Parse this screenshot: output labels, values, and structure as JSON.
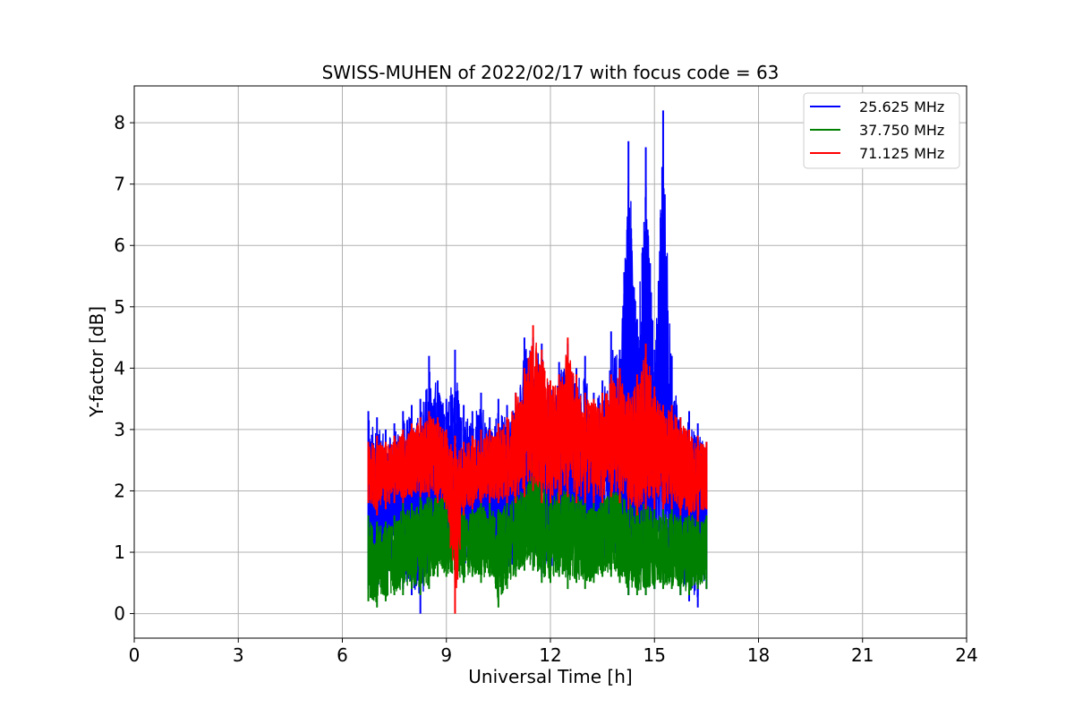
{
  "chart_data": {
    "type": "line",
    "title": "SWISS-MUHEN of 2022/02/17 with focus code = 63",
    "xlabel": "Universal Time [h]",
    "ylabel": "Y-factor [dB]",
    "xlim": [
      0,
      24
    ],
    "ylim": [
      -0.4,
      8.6
    ],
    "xticks": [
      0,
      3,
      6,
      9,
      12,
      15,
      18,
      21,
      24
    ],
    "yticks": [
      0,
      1,
      2,
      3,
      4,
      5,
      6,
      7,
      8
    ],
    "grid": true,
    "legend_position": "top-right",
    "series": [
      {
        "name": "25.625 MHz",
        "color": "#0000ff",
        "x": [
          6.75,
          7.0,
          7.25,
          7.5,
          7.75,
          8.0,
          8.25,
          8.5,
          8.75,
          9.0,
          9.25,
          9.5,
          9.75,
          10.0,
          10.25,
          10.5,
          10.75,
          11.0,
          11.25,
          11.5,
          11.75,
          12.0,
          12.25,
          12.5,
          12.75,
          13.0,
          13.25,
          13.5,
          13.75,
          14.0,
          14.25,
          14.5,
          14.75,
          15.0,
          15.25,
          15.5,
          15.75,
          16.0,
          16.25,
          16.5
        ],
        "ymin": [
          0.4,
          0.3,
          0.3,
          0.4,
          0.4,
          0.3,
          0.0,
          0.6,
          0.8,
          0.8,
          0.7,
          0.6,
          0.8,
          0.7,
          0.8,
          0.6,
          0.6,
          0.7,
          0.9,
          0.8,
          0.6,
          0.6,
          0.7,
          0.6,
          0.6,
          0.7,
          0.6,
          0.7,
          0.8,
          0.6,
          0.3,
          0.4,
          0.3,
          0.4,
          0.5,
          0.5,
          0.3,
          0.2,
          0.1,
          0.4
        ],
        "ymax": [
          3.3,
          3.2,
          3.0,
          3.1,
          3.3,
          3.4,
          3.5,
          4.2,
          3.8,
          3.5,
          4.3,
          3.4,
          3.3,
          3.6,
          3.2,
          3.5,
          3.4,
          3.6,
          4.5,
          4.5,
          4.4,
          3.8,
          4.1,
          4.4,
          4.0,
          4.2,
          3.6,
          3.8,
          4.6,
          4.3,
          7.7,
          4.8,
          7.6,
          4.3,
          8.2,
          4.2,
          3.2,
          3.3,
          3.1,
          2.8
        ]
      },
      {
        "name": "37.750 MHz",
        "color": "#008000",
        "x": [
          6.75,
          7.0,
          7.25,
          7.5,
          7.75,
          8.0,
          8.25,
          8.5,
          8.75,
          9.0,
          9.25,
          9.5,
          9.75,
          10.0,
          10.25,
          10.5,
          10.75,
          11.0,
          11.25,
          11.5,
          11.75,
          12.0,
          12.25,
          12.5,
          12.75,
          13.0,
          13.25,
          13.5,
          13.75,
          14.0,
          14.25,
          14.5,
          14.75,
          15.0,
          15.25,
          15.5,
          15.75,
          16.0,
          16.25,
          16.5
        ],
        "ymin": [
          0.2,
          0.1,
          0.2,
          0.3,
          0.3,
          0.4,
          0.3,
          0.4,
          0.6,
          0.6,
          0.5,
          0.5,
          0.6,
          0.5,
          0.6,
          0.1,
          0.4,
          0.6,
          0.7,
          0.7,
          0.5,
          0.5,
          0.6,
          0.4,
          0.5,
          0.4,
          0.5,
          0.6,
          0.6,
          0.5,
          0.3,
          0.3,
          0.3,
          0.4,
          0.4,
          0.4,
          0.3,
          0.3,
          0.4,
          0.4
        ],
        "ymax": [
          1.6,
          1.5,
          1.5,
          1.6,
          1.8,
          1.8,
          1.9,
          2.0,
          2.0,
          1.9,
          1.8,
          1.7,
          1.7,
          1.9,
          1.8,
          1.7,
          1.9,
          2.0,
          2.1,
          2.5,
          2.3,
          2.0,
          2.1,
          2.1,
          2.0,
          1.9,
          1.8,
          1.9,
          2.1,
          2.1,
          1.9,
          1.8,
          1.9,
          1.7,
          1.7,
          1.7,
          1.6,
          1.7,
          1.6,
          1.6
        ]
      },
      {
        "name": "71.125 MHz",
        "color": "#ff0000",
        "x": [
          6.75,
          7.0,
          7.25,
          7.5,
          7.75,
          8.0,
          8.25,
          8.5,
          8.75,
          9.0,
          9.25,
          9.5,
          9.75,
          10.0,
          10.25,
          10.5,
          10.75,
          11.0,
          11.25,
          11.5,
          11.75,
          12.0,
          12.25,
          12.5,
          12.75,
          13.0,
          13.25,
          13.5,
          13.75,
          14.0,
          14.25,
          14.5,
          14.75,
          15.0,
          15.25,
          15.5,
          15.75,
          16.0,
          16.25,
          16.5
        ],
        "ymin": [
          1.8,
          1.6,
          1.7,
          1.8,
          1.8,
          1.9,
          1.9,
          1.9,
          1.8,
          1.7,
          0.0,
          1.6,
          1.7,
          1.8,
          1.8,
          1.8,
          1.8,
          1.8,
          1.9,
          2.0,
          1.8,
          1.8,
          1.8,
          1.9,
          1.8,
          1.8,
          1.8,
          1.8,
          1.9,
          1.8,
          1.7,
          1.6,
          1.7,
          1.7,
          1.7,
          1.7,
          1.6,
          1.6,
          1.5,
          1.7
        ],
        "ymax": [
          2.8,
          2.9,
          2.8,
          2.9,
          3.0,
          3.1,
          3.2,
          3.3,
          3.2,
          3.0,
          2.9,
          2.8,
          2.9,
          3.0,
          3.0,
          3.1,
          3.2,
          3.6,
          4.0,
          4.7,
          4.3,
          3.8,
          3.9,
          4.5,
          3.9,
          3.6,
          3.5,
          3.6,
          3.9,
          4.0,
          3.6,
          3.9,
          4.4,
          3.7,
          3.4,
          3.4,
          3.2,
          3.0,
          2.9,
          2.8
        ]
      }
    ]
  }
}
